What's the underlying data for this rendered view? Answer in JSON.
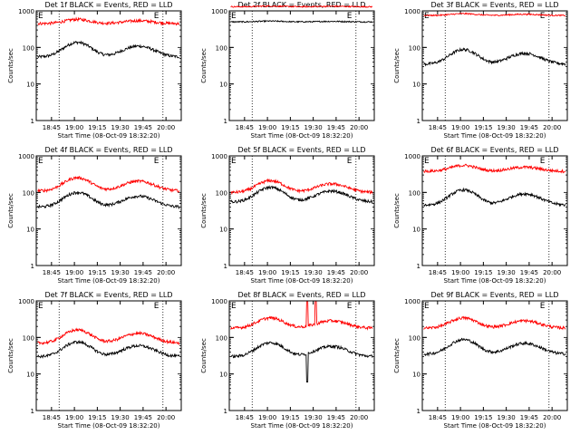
{
  "chart_data": [
    {
      "type": "line",
      "title": "Det 1f BLACK = Events, RED = LLD",
      "xlabel": "Start Time (08-Oct-09 18:32:20)",
      "ylabel": "Counts/sec",
      "yscale": "log",
      "ylim": [
        1,
        1000
      ],
      "xlim": [
        "18:35",
        "20:10"
      ],
      "y_ticks": [
        "1",
        "10",
        "100",
        "1000"
      ],
      "x_ticks": [
        "18:45",
        "19:00",
        "19:15",
        "19:30",
        "19:45",
        "20:00"
      ],
      "vlines": [
        "18:50",
        "19:58"
      ],
      "flags": [
        "E",
        "E"
      ],
      "series": [
        {
          "color": "#000000",
          "base": 55,
          "amp": 1.5
        },
        {
          "color": "#ff0000",
          "base": 450,
          "amp": 0.3
        }
      ]
    },
    {
      "type": "line",
      "title": "Det 2f BLACK = Events, RED = LLD",
      "xlabel": "Start Time (08-Oct-09 18:32:20)",
      "ylabel": "Counts/sec",
      "yscale": "log",
      "ylim": [
        1,
        1000
      ],
      "xlim": [
        "18:35",
        "20:10"
      ],
      "y_ticks": [
        "1",
        "10",
        "100",
        "1000"
      ],
      "x_ticks": [
        "18:45",
        "19:00",
        "19:15",
        "19:30",
        "19:45",
        "20:00"
      ],
      "vlines": [
        "18:50",
        "19:58"
      ],
      "flags": [
        "E",
        "E"
      ],
      "series": [
        {
          "color": "#000000",
          "base": 500,
          "amp": 0.05
        },
        {
          "color": "#ff0000",
          "base": 1300,
          "amp": 0.04
        }
      ]
    },
    {
      "type": "line",
      "title": "Det 3f BLACK = Events, RED = LLD",
      "xlabel": "Start Time (08-Oct-09 18:32:20)",
      "ylabel": "Counts/sec",
      "yscale": "log",
      "ylim": [
        1,
        1000
      ],
      "xlim": [
        "18:35",
        "20:10"
      ],
      "y_ticks": [
        "1",
        "10",
        "100",
        "1000"
      ],
      "x_ticks": [
        "18:45",
        "19:00",
        "19:15",
        "19:30",
        "19:45",
        "20:00"
      ],
      "vlines": [
        "18:50",
        "19:58"
      ],
      "flags": [
        "E",
        "E"
      ],
      "series": [
        {
          "color": "#000000",
          "base": 35,
          "amp": 1.5
        },
        {
          "color": "#ff0000",
          "base": 750,
          "amp": 0.12
        }
      ]
    },
    {
      "type": "line",
      "title": "Det 4f BLACK = Events, RED = LLD",
      "xlabel": "Start Time (08-Oct-09 18:32:20)",
      "ylabel": "Counts/sec",
      "yscale": "log",
      "ylim": [
        1,
        1000
      ],
      "xlim": [
        "18:35",
        "20:10"
      ],
      "y_ticks": [
        "1",
        "10",
        "100",
        "1000"
      ],
      "x_ticks": [
        "18:45",
        "19:00",
        "19:15",
        "19:30",
        "19:45",
        "20:00"
      ],
      "vlines": [
        "18:50",
        "19:58"
      ],
      "flags": [
        "E",
        "E"
      ],
      "series": [
        {
          "color": "#000000",
          "base": 40,
          "amp": 1.5
        },
        {
          "color": "#ff0000",
          "base": 110,
          "amp": 1.3
        }
      ]
    },
    {
      "type": "line",
      "title": "Det 5f BLACK = Events, RED = LLD",
      "xlabel": "Start Time (08-Oct-09 18:32:20)",
      "ylabel": "Counts/sec",
      "yscale": "log",
      "ylim": [
        1,
        1000
      ],
      "xlim": [
        "18:35",
        "20:10"
      ],
      "y_ticks": [
        "1",
        "10",
        "100",
        "1000"
      ],
      "x_ticks": [
        "18:45",
        "19:00",
        "19:15",
        "19:30",
        "19:45",
        "20:00"
      ],
      "vlines": [
        "18:50",
        "19:58"
      ],
      "flags": [
        "E",
        "E"
      ],
      "series": [
        {
          "color": "#000000",
          "base": 55,
          "amp": 1.5
        },
        {
          "color": "#ff0000",
          "base": 100,
          "amp": 1.1
        }
      ]
    },
    {
      "type": "line",
      "title": "Det 6f BLACK = Events, RED = LLD",
      "xlabel": "Start Time (08-Oct-09 18:32:20)",
      "ylabel": "Counts/sec",
      "yscale": "log",
      "ylim": [
        1,
        1000
      ],
      "xlim": [
        "18:35",
        "20:10"
      ],
      "y_ticks": [
        "1",
        "10",
        "100",
        "1000"
      ],
      "x_ticks": [
        "18:45",
        "19:00",
        "19:15",
        "19:30",
        "19:45",
        "20:00"
      ],
      "vlines": [
        "18:50",
        "19:58"
      ],
      "flags": [
        "E",
        "E"
      ],
      "series": [
        {
          "color": "#000000",
          "base": 45,
          "amp": 1.6
        },
        {
          "color": "#ff0000",
          "base": 380,
          "amp": 0.45
        }
      ]
    },
    {
      "type": "line",
      "title": "Det 7f BLACK = Events, RED = LLD",
      "xlabel": "Start Time (08-Oct-09 18:32:20)",
      "ylabel": "Counts/sec",
      "yscale": "log",
      "ylim": [
        1,
        1000
      ],
      "xlim": [
        "18:35",
        "20:10"
      ],
      "y_ticks": [
        "1",
        "10",
        "100",
        "1000"
      ],
      "x_ticks": [
        "18:45",
        "19:00",
        "19:15",
        "19:30",
        "19:45",
        "20:00"
      ],
      "vlines": [
        "18:50",
        "19:58"
      ],
      "flags": [
        "E",
        "E"
      ],
      "series": [
        {
          "color": "#000000",
          "base": 30,
          "amp": 1.5
        },
        {
          "color": "#ff0000",
          "base": 70,
          "amp": 1.3
        }
      ]
    },
    {
      "type": "line",
      "title": "Det 8f BLACK = Events, RED = LLD",
      "xlabel": "Start Time (08-Oct-09 18:32:20)",
      "ylabel": "Counts/sec",
      "yscale": "log",
      "ylim": [
        1,
        1000
      ],
      "xlim": [
        "18:35",
        "20:10"
      ],
      "y_ticks": [
        "1",
        "10",
        "100",
        "1000"
      ],
      "x_ticks": [
        "18:45",
        "19:00",
        "19:15",
        "19:30",
        "19:45",
        "20:00"
      ],
      "vlines": [
        "18:50",
        "19:58"
      ],
      "flags": [
        "E",
        "E"
      ],
      "series": [
        {
          "color": "#000000",
          "base": 30,
          "amp": 1.4,
          "spike": true
        },
        {
          "color": "#ff0000",
          "base": 180,
          "amp": 0.9,
          "spike": true
        }
      ]
    },
    {
      "type": "line",
      "title": "Det 9f BLACK = Events, RED = LLD",
      "xlabel": "Start Time (08-Oct-09 18:32:20)",
      "ylabel": "Counts/sec",
      "yscale": "log",
      "ylim": [
        1,
        1000
      ],
      "xlim": [
        "18:35",
        "20:10"
      ],
      "y_ticks": [
        "1",
        "10",
        "100",
        "1000"
      ],
      "x_ticks": [
        "18:45",
        "19:00",
        "19:15",
        "19:30",
        "19:45",
        "20:00"
      ],
      "vlines": [
        "18:50",
        "19:58"
      ],
      "flags": [
        "E",
        "E"
      ],
      "series": [
        {
          "color": "#000000",
          "base": 35,
          "amp": 1.5
        },
        {
          "color": "#ff0000",
          "base": 180,
          "amp": 0.9
        }
      ]
    }
  ]
}
